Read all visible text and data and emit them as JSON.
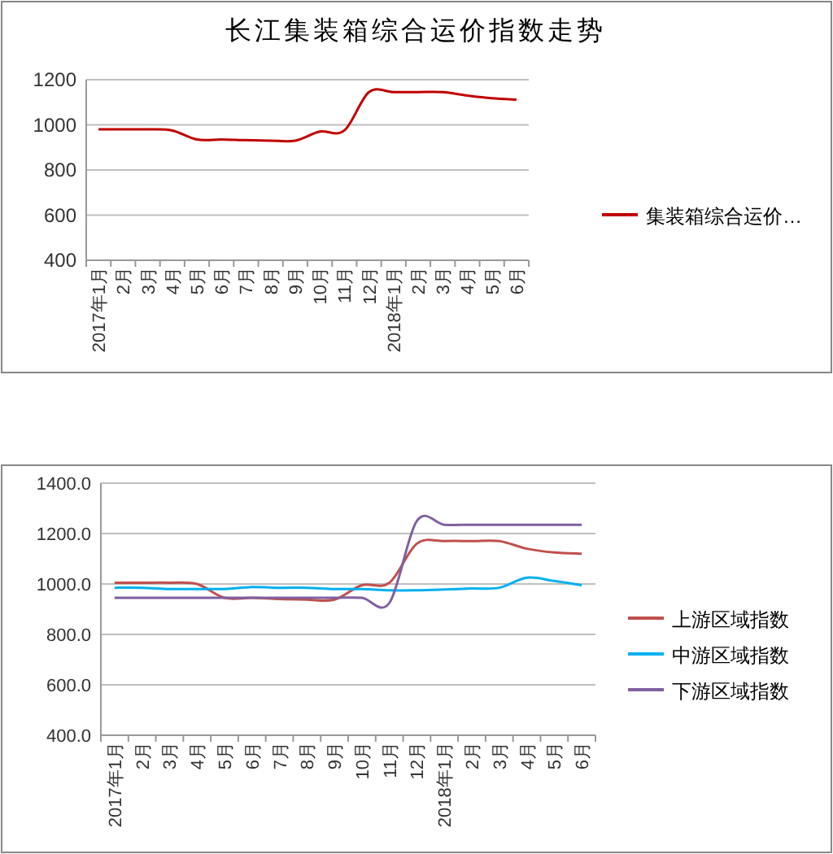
{
  "chart_data": [
    {
      "type": "line",
      "title": "长江集装箱综合运价指数走势",
      "categories": [
        "2017年1月",
        "2月",
        "3月",
        "4月",
        "5月",
        "6月",
        "7月",
        "8月",
        "9月",
        "10月",
        "11月",
        "12月",
        "2018年1月",
        "2月",
        "3月",
        "4月",
        "5月",
        "6月"
      ],
      "series": [
        {
          "name": "集装箱综合运价…",
          "color": "#c00000",
          "values": [
            980,
            980,
            980,
            975,
            935,
            935,
            932,
            930,
            930,
            970,
            975,
            1145,
            1145,
            1145,
            1145,
            1130,
            1118,
            1112
          ]
        }
      ],
      "ylim": [
        400,
        1200
      ],
      "yticks": [
        400,
        600,
        800,
        1000,
        1200
      ],
      "grid": "y",
      "legend": "right"
    },
    {
      "type": "line",
      "categories": [
        "2017年1月",
        "2月",
        "3月",
        "4月",
        "5月",
        "6月",
        "7月",
        "8月",
        "9月",
        "10月",
        "11月",
        "12月",
        "2018年1月",
        "2月",
        "3月",
        "4月",
        "5月",
        "6月"
      ],
      "series": [
        {
          "name": "上游区域指数",
          "color": "#c0504d",
          "values": [
            1005,
            1005,
            1005,
            1000,
            945,
            945,
            940,
            938,
            938,
            995,
            1005,
            1160,
            1170,
            1170,
            1170,
            1140,
            1125,
            1120
          ]
        },
        {
          "name": "中游区域指数",
          "color": "#00b0f0",
          "values": [
            985,
            985,
            980,
            980,
            980,
            988,
            985,
            985,
            980,
            980,
            975,
            975,
            978,
            982,
            985,
            1025,
            1012,
            995
          ]
        },
        {
          "name": "下游区域指数",
          "color": "#7f60a0",
          "values": [
            945,
            945,
            945,
            945,
            945,
            945,
            945,
            945,
            945,
            945,
            925,
            1250,
            1235,
            1235,
            1235,
            1235,
            1235,
            1235
          ]
        }
      ],
      "ylim": [
        400,
        1400
      ],
      "yticks": [
        {
          "value": 400,
          "label": "400.0"
        },
        {
          "value": 600,
          "label": "600.0"
        },
        {
          "value": 800,
          "label": "800.0"
        },
        {
          "value": 1000,
          "label": "1000.0"
        },
        {
          "value": 1200,
          "label": "1200.0"
        },
        {
          "value": 1400,
          "label": "1400.0"
        }
      ],
      "grid": "y",
      "legend": "right"
    }
  ]
}
